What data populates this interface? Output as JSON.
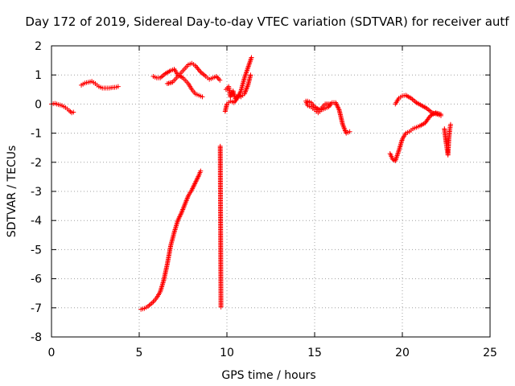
{
  "chart_data": {
    "type": "scatter",
    "title": "Day 172 of 2019, Sidereal Day-to-day VTEC variation (SDTVAR) for receiver autf",
    "xlabel": "GPS time / hours",
    "ylabel": "SDTVAR / TECUs",
    "xlim": [
      0,
      25
    ],
    "ylim": [
      -8,
      2
    ],
    "xticks": [
      "0",
      "5",
      "10",
      "15",
      "20",
      "25"
    ],
    "yticks": [
      "2",
      "1",
      "0",
      "-1",
      "-2",
      "-3",
      "-4",
      "-5",
      "-6",
      "-7",
      "-8"
    ],
    "grid": true,
    "marker": "plus",
    "color": "#ff0000",
    "series": [
      {
        "name": "s1",
        "x": [
          0.0,
          0.2,
          0.4,
          0.6,
          0.8,
          1.0,
          1.15,
          1.25
        ],
        "y": [
          0.0,
          0.02,
          -0.02,
          -0.05,
          -0.12,
          -0.22,
          -0.3,
          -0.28
        ]
      },
      {
        "name": "s2",
        "x": [
          1.7,
          1.9,
          2.1,
          2.3,
          2.5,
          2.7,
          2.9,
          3.1,
          3.3,
          3.5,
          3.7,
          3.8
        ],
        "y": [
          0.65,
          0.72,
          0.75,
          0.78,
          0.7,
          0.6,
          0.55,
          0.55,
          0.55,
          0.57,
          0.58,
          0.6
        ]
      },
      {
        "name": "s3",
        "x": [
          5.1,
          5.3,
          5.5,
          5.8,
          6.0,
          6.2,
          6.4,
          6.6,
          6.8,
          7.0,
          7.2,
          7.4,
          7.6,
          7.8,
          8.0,
          8.2,
          8.4,
          8.5
        ],
        "y": [
          -7.05,
          -7.02,
          -6.95,
          -6.8,
          -6.65,
          -6.45,
          -6.05,
          -5.5,
          -4.85,
          -4.4,
          -4.0,
          -3.75,
          -3.45,
          -3.15,
          -2.95,
          -2.7,
          -2.45,
          -2.3
        ]
      },
      {
        "name": "s4",
        "x": [
          5.8,
          6.0,
          6.2,
          6.5,
          6.8,
          7.0,
          7.2,
          7.5,
          7.8,
          8.0,
          8.2,
          8.4,
          8.6
        ],
        "y": [
          0.95,
          0.9,
          0.9,
          1.05,
          1.15,
          1.2,
          1.0,
          0.9,
          0.7,
          0.5,
          0.35,
          0.3,
          0.25
        ]
      },
      {
        "name": "s5",
        "x": [
          6.6,
          6.9,
          7.2,
          7.5,
          7.8,
          8.0,
          8.2,
          8.5,
          8.8,
          9.0,
          9.2,
          9.4,
          9.6
        ],
        "y": [
          0.7,
          0.75,
          0.95,
          1.15,
          1.35,
          1.4,
          1.32,
          1.1,
          0.95,
          0.85,
          0.9,
          0.95,
          0.82
        ]
      },
      {
        "name": "s6",
        "x": [
          9.62,
          9.66
        ],
        "y": [
          -1.45,
          -6.97
        ]
      },
      {
        "name": "s7",
        "x": [
          9.9,
          10.0,
          10.2,
          10.4,
          10.6,
          10.8,
          11.0,
          11.2,
          11.4
        ],
        "y": [
          -0.25,
          0.0,
          0.1,
          0.05,
          0.2,
          0.45,
          0.9,
          1.25,
          1.6
        ]
      },
      {
        "name": "s8",
        "x": [
          9.95,
          10.1,
          10.2,
          10.35,
          10.5,
          10.65,
          10.8,
          11.0,
          11.2,
          11.35
        ],
        "y": [
          0.5,
          0.6,
          0.25,
          0.45,
          0.15,
          0.3,
          0.25,
          0.35,
          0.65,
          1.0
        ]
      },
      {
        "name": "s9",
        "x": [
          14.5,
          14.6,
          14.8,
          15.0,
          15.2,
          15.4,
          15.6,
          15.8,
          16.0,
          16.2,
          16.4,
          16.6,
          16.8,
          17.0
        ],
        "y": [
          0.1,
          -0.05,
          -0.1,
          -0.2,
          -0.3,
          -0.2,
          -0.15,
          -0.1,
          0.05,
          0.05,
          -0.2,
          -0.7,
          -1.0,
          -0.95
        ]
      },
      {
        "name": "s10",
        "x": [
          14.6,
          14.8,
          15.0,
          15.3,
          15.6,
          15.9
        ],
        "y": [
          0.1,
          0.05,
          -0.1,
          -0.2,
          0.0,
          0.0
        ]
      },
      {
        "name": "s11",
        "x": [
          19.3,
          19.45,
          19.6,
          19.8,
          20.0,
          20.2,
          20.4,
          20.6,
          20.8,
          21.0,
          21.3,
          21.6,
          21.9,
          22.2
        ],
        "y": [
          -1.7,
          -1.9,
          -1.95,
          -1.6,
          -1.2,
          -1.0,
          -0.95,
          -0.85,
          -0.8,
          -0.75,
          -0.65,
          -0.4,
          -0.3,
          -0.35
        ]
      },
      {
        "name": "s12",
        "x": [
          19.6,
          19.8,
          20.0,
          20.2,
          20.5,
          20.8,
          21.1,
          21.4,
          21.7,
          22.0,
          22.2
        ],
        "y": [
          0.0,
          0.2,
          0.28,
          0.3,
          0.2,
          0.05,
          -0.05,
          -0.15,
          -0.3,
          -0.35,
          -0.4
        ]
      },
      {
        "name": "s13",
        "x": [
          22.4,
          22.45,
          22.5,
          22.55,
          22.6,
          22.65,
          22.7,
          22.75
        ],
        "y": [
          -0.85,
          -1.1,
          -1.35,
          -1.55,
          -1.75,
          -1.2,
          -0.9,
          -0.7
        ]
      }
    ]
  }
}
